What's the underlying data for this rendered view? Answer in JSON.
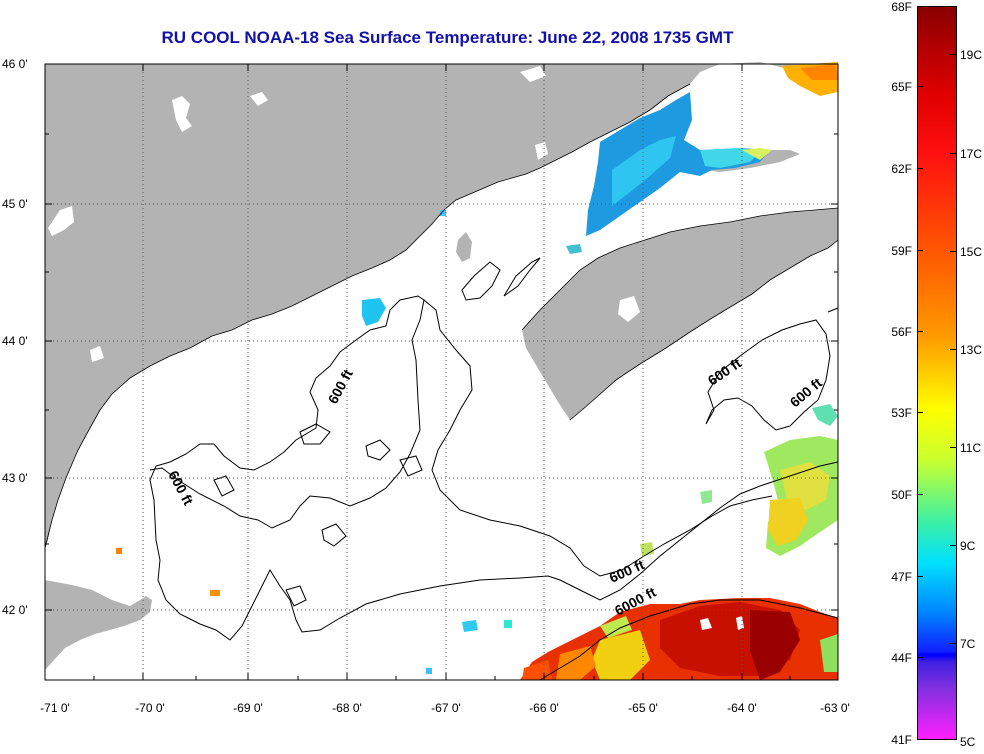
{
  "title": "RU COOL  NOAA-18  Sea Surface Temperature:  June 22, 2008 1735 GMT",
  "lat_labels": [
    "46 0'",
    "45 0'",
    "44 0'",
    "43 0'",
    "42 0'"
  ],
  "lon_labels": [
    "-71 0'",
    "-70 0'",
    "-69 0'",
    "-68 0'",
    "-67 0'",
    "-66 0'",
    "-65 0'",
    "-64 0'",
    "-63 0'"
  ],
  "contour_labels": {
    "c1": "600 ft",
    "c2": "600 ft",
    "c3": "600 ft",
    "c4": "600 ft",
    "c5": "600 ft",
    "c6": "6000 ft"
  },
  "colorbar": {
    "fahrenheit": [
      "68F",
      "65F",
      "62F",
      "59F",
      "56F",
      "53F",
      "50F",
      "47F",
      "44F",
      "41F"
    ],
    "celsius": [
      "19C",
      "17C",
      "15C",
      "13C",
      "11C",
      "9C",
      "7C",
      "5C"
    ]
  },
  "colors": {
    "land": "#b3b3b3",
    "title": "#1212a8",
    "grid": "#555555"
  }
}
